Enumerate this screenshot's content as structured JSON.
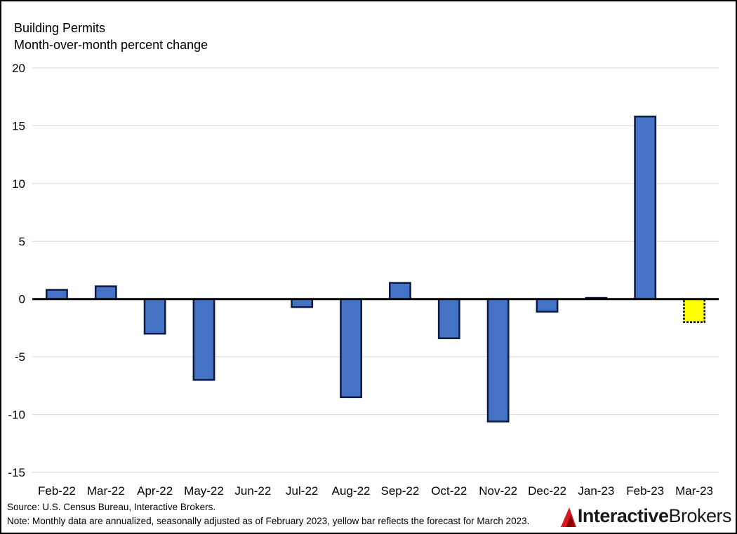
{
  "chart_data": {
    "type": "bar",
    "title": "Building Permits",
    "subtitle": "Month-over-month percent change",
    "categories": [
      "Feb-22",
      "Mar-22",
      "Apr-22",
      "May-22",
      "Jun-22",
      "Jul-22",
      "Aug-22",
      "Sep-22",
      "Oct-22",
      "Nov-22",
      "Dec-22",
      "Jan-23",
      "Feb-23",
      "Mar-23"
    ],
    "values": [
      0.8,
      1.1,
      -3.0,
      -7.0,
      0.0,
      -0.7,
      -8.5,
      1.4,
      -3.4,
      -10.6,
      -1.1,
      0.1,
      15.8,
      -2.0
    ],
    "forecast": [
      false,
      false,
      false,
      false,
      false,
      false,
      false,
      false,
      false,
      false,
      false,
      false,
      false,
      true
    ],
    "ylim": [
      -15,
      20
    ],
    "yticks": [
      20,
      15,
      10,
      5,
      0,
      -5,
      -10,
      -15
    ],
    "grid": true,
    "colors": {
      "bar": "#4472c4",
      "bar_edge": "#0d1b45",
      "forecast": "#ffff00",
      "grid": "#d9d9d9",
      "zero_line": "#000000"
    }
  },
  "footer": {
    "source": "Source: U.S. Census Bureau, Interactive Brokers.",
    "note": "Note: Monthly data are annualized, seasonally adjusted as of February 2023, yellow bar reflects the forecast for March 2023."
  },
  "logo": {
    "part1": "Interactive",
    "part2": "Brokers",
    "icon": "ib-logo-icon",
    "color": "#d71920"
  }
}
